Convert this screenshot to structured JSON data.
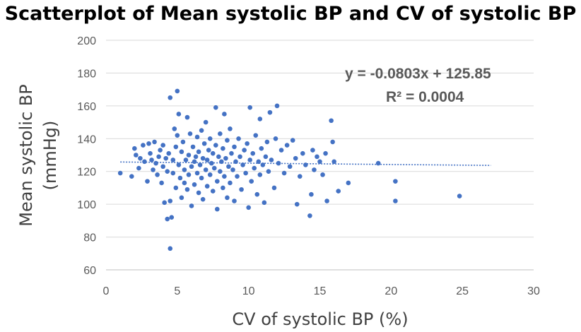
{
  "chart_data": {
    "type": "scatter",
    "title": "Scatterplot of Mean systolic BP and CV of systolic BP",
    "xlabel": "CV of systolic BP (%)",
    "ylabel_line1": "Mean systolic BP",
    "ylabel_line2": "(mmHg)",
    "xlim": [
      0,
      30
    ],
    "ylim": [
      60,
      200
    ],
    "x_ticks": [
      0,
      5,
      10,
      15,
      20,
      25,
      30
    ],
    "y_ticks": [
      60,
      80,
      100,
      120,
      140,
      160,
      180,
      200
    ],
    "grid": "horizontal",
    "trendline": {
      "type": "linear",
      "slope": -0.0803,
      "intercept": 125.85,
      "x_range": [
        1,
        27
      ],
      "equation": "y = -0.0803x + 125.85",
      "r_squared": "R² = 0.0004"
    },
    "colors": {
      "points": "#4472c4",
      "trendline": "#4472c4",
      "grid": "#d9d9d9",
      "axis": "#bfbfbf"
    },
    "points": [
      [
        1.0,
        119
      ],
      [
        1.8,
        117
      ],
      [
        2.0,
        134
      ],
      [
        2.1,
        130
      ],
      [
        2.3,
        122
      ],
      [
        2.4,
        128
      ],
      [
        2.6,
        136
      ],
      [
        2.7,
        126
      ],
      [
        2.9,
        114
      ],
      [
        3.0,
        137
      ],
      [
        3.1,
        131
      ],
      [
        3.2,
        127
      ],
      [
        3.3,
        121
      ],
      [
        3.4,
        138
      ],
      [
        3.5,
        125
      ],
      [
        3.6,
        118
      ],
      [
        3.7,
        129
      ],
      [
        3.8,
        133
      ],
      [
        3.9,
        113
      ],
      [
        4.0,
        136
      ],
      [
        4.0,
        123
      ],
      [
        4.1,
        101
      ],
      [
        4.2,
        128
      ],
      [
        4.3,
        120
      ],
      [
        4.3,
        91
      ],
      [
        4.4,
        131
      ],
      [
        4.5,
        102
      ],
      [
        4.5,
        73
      ],
      [
        4.5,
        165
      ],
      [
        4.6,
        92
      ],
      [
        4.7,
        127
      ],
      [
        4.7,
        119
      ],
      [
        4.8,
        146
      ],
      [
        4.9,
        135
      ],
      [
        4.9,
        110
      ],
      [
        5.0,
        169
      ],
      [
        5.0,
        142
      ],
      [
        5.1,
        124
      ],
      [
        5.1,
        155
      ],
      [
        5.2,
        116
      ],
      [
        5.3,
        132
      ],
      [
        5.3,
        104
      ],
      [
        5.4,
        138
      ],
      [
        5.5,
        121
      ],
      [
        5.5,
        113
      ],
      [
        5.6,
        127
      ],
      [
        5.7,
        153
      ],
      [
        5.7,
        109
      ],
      [
        5.8,
        130
      ],
      [
        5.8,
        118
      ],
      [
        5.9,
        143
      ],
      [
        6.0,
        123
      ],
      [
        6.0,
        99
      ],
      [
        6.1,
        135
      ],
      [
        6.2,
        126
      ],
      [
        6.2,
        112
      ],
      [
        6.3,
        129
      ],
      [
        6.4,
        141
      ],
      [
        6.4,
        119
      ],
      [
        6.5,
        107
      ],
      [
        6.5,
        132
      ],
      [
        6.6,
        124
      ],
      [
        6.7,
        145
      ],
      [
        6.7,
        116
      ],
      [
        6.8,
        128
      ],
      [
        6.8,
        103
      ],
      [
        6.9,
        137
      ],
      [
        7.0,
        121
      ],
      [
        7.0,
        150
      ],
      [
        7.1,
        127
      ],
      [
        7.1,
        111
      ],
      [
        7.2,
        133
      ],
      [
        7.3,
        118
      ],
      [
        7.3,
        140
      ],
      [
        7.4,
        125
      ],
      [
        7.5,
        108
      ],
      [
        7.5,
        131
      ],
      [
        7.6,
        122
      ],
      [
        7.7,
        159
      ],
      [
        7.7,
        136
      ],
      [
        7.8,
        114
      ],
      [
        7.8,
        97
      ],
      [
        7.9,
        129
      ],
      [
        8.0,
        120
      ],
      [
        8.0,
        143
      ],
      [
        8.1,
        126
      ],
      [
        8.2,
        110
      ],
      [
        8.2,
        134
      ],
      [
        8.3,
        155
      ],
      [
        8.3,
        117
      ],
      [
        8.4,
        128
      ],
      [
        8.5,
        104
      ],
      [
        8.5,
        139
      ],
      [
        8.6,
        123
      ],
      [
        8.7,
        146
      ],
      [
        8.7,
        113
      ],
      [
        8.8,
        131
      ],
      [
        8.9,
        121
      ],
      [
        9.0,
        102
      ],
      [
        9.0,
        135
      ],
      [
        9.1,
        126
      ],
      [
        9.2,
        117
      ],
      [
        9.3,
        140
      ],
      [
        9.4,
        129
      ],
      [
        9.5,
        109
      ],
      [
        9.6,
        124
      ],
      [
        9.7,
        133
      ],
      [
        9.8,
        119
      ],
      [
        9.9,
        137
      ],
      [
        10.0,
        98
      ],
      [
        10.1,
        159
      ],
      [
        10.1,
        127
      ],
      [
        10.2,
        114
      ],
      [
        10.3,
        131
      ],
      [
        10.4,
        122
      ],
      [
        10.5,
        142
      ],
      [
        10.6,
        106
      ],
      [
        10.7,
        126
      ],
      [
        10.8,
        152
      ],
      [
        10.8,
        118
      ],
      [
        10.9,
        134
      ],
      [
        11.0,
        124
      ],
      [
        11.1,
        101
      ],
      [
        11.2,
        129
      ],
      [
        11.3,
        138
      ],
      [
        11.4,
        120
      ],
      [
        11.5,
        156
      ],
      [
        11.6,
        127
      ],
      [
        11.8,
        110
      ],
      [
        11.9,
        140
      ],
      [
        12.0,
        160
      ],
      [
        12.1,
        125
      ],
      [
        12.3,
        133
      ],
      [
        12.5,
        119
      ],
      [
        12.7,
        136
      ],
      [
        12.9,
        123
      ],
      [
        13.1,
        139
      ],
      [
        13.3,
        128
      ],
      [
        13.4,
        100
      ],
      [
        13.6,
        117
      ],
      [
        13.8,
        131
      ],
      [
        14.0,
        124
      ],
      [
        14.3,
        93
      ],
      [
        14.4,
        106
      ],
      [
        14.5,
        133
      ],
      [
        14.6,
        121
      ],
      [
        14.8,
        129
      ],
      [
        15.0,
        126
      ],
      [
        15.2,
        118
      ],
      [
        15.4,
        131
      ],
      [
        15.5,
        102
      ],
      [
        15.8,
        151
      ],
      [
        15.9,
        138
      ],
      [
        16.0,
        126
      ],
      [
        16.3,
        108
      ],
      [
        17.0,
        113
      ],
      [
        19.1,
        125
      ],
      [
        20.3,
        114
      ],
      [
        20.3,
        102
      ],
      [
        24.8,
        105
      ]
    ]
  }
}
